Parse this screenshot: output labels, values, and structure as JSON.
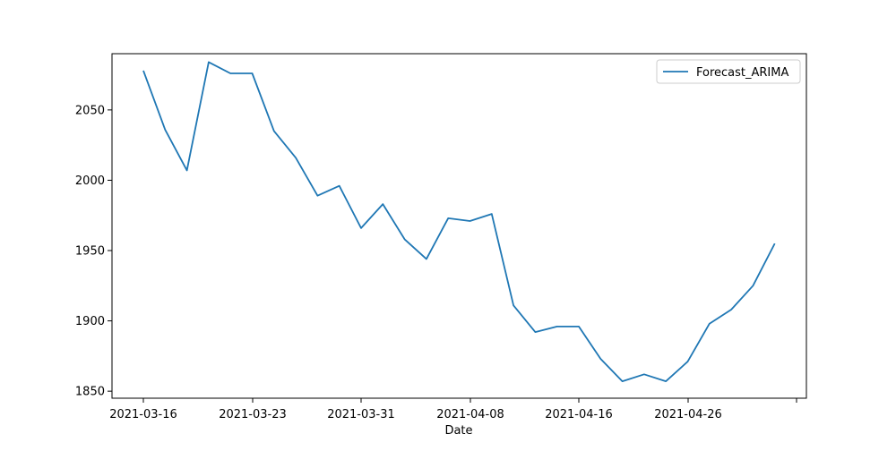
{
  "chart_data": {
    "type": "line",
    "title": "",
    "xlabel": "Date",
    "ylabel": "",
    "x_tick_labels": [
      "2021-03-16",
      "2021-03-23",
      "2021-03-31",
      "2021-04-08",
      "2021-04-16",
      "2021-04-26",
      ""
    ],
    "y_ticks": [
      1850,
      1900,
      1950,
      2000,
      2050
    ],
    "ylim": [
      1845,
      2090
    ],
    "grid": false,
    "legend_position": "upper right",
    "series": [
      {
        "name": "Forecast_ARIMA",
        "color": "#1f77b4",
        "values": [
          2078,
          2036,
          2007,
          2084,
          2076,
          2076,
          2035,
          2016,
          1989,
          1996,
          1966,
          1983,
          1958,
          1944,
          1973,
          1971,
          1976,
          1911,
          1892,
          1896,
          1896,
          1873,
          1857,
          1862,
          1857,
          1871,
          1898,
          1908,
          1925,
          1955
        ]
      }
    ]
  }
}
